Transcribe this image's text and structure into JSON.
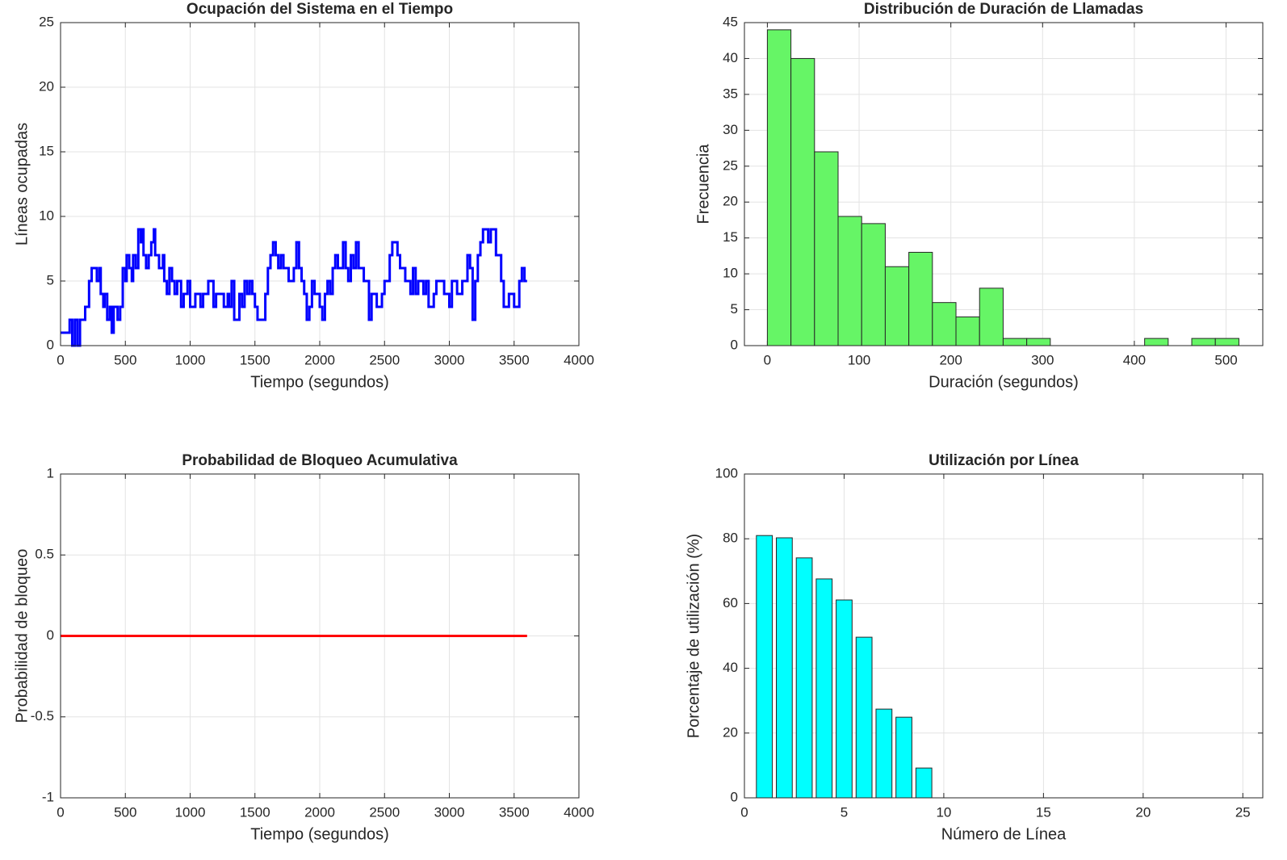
{
  "chart_data": [
    {
      "type": "line",
      "step": true,
      "title": "Ocupación del Sistema en el Tiempo",
      "xlabel": "Tiempo (segundos)",
      "ylabel": "Líneas ocupadas",
      "xlim": [
        0,
        4000
      ],
      "ylim": [
        0,
        25
      ],
      "xticks": [
        0,
        500,
        1000,
        1500,
        2000,
        2500,
        3000,
        3500,
        4000
      ],
      "yticks": [
        0,
        5,
        10,
        15,
        20,
        25
      ],
      "grid": true,
      "x": [
        0,
        70,
        90,
        110,
        130,
        150,
        190,
        220,
        240,
        280,
        300,
        310,
        330,
        340,
        360,
        380,
        395,
        410,
        440,
        460,
        480,
        500,
        510,
        530,
        550,
        560,
        580,
        600,
        620,
        630,
        640,
        660,
        680,
        700,
        720,
        730,
        760,
        790,
        800,
        820,
        840,
        860,
        880,
        900,
        930,
        950,
        980,
        1000,
        1040,
        1080,
        1100,
        1140,
        1180,
        1200,
        1260,
        1290,
        1300,
        1320,
        1340,
        1380,
        1400,
        1420,
        1440,
        1460,
        1480,
        1500,
        1520,
        1580,
        1600,
        1620,
        1640,
        1660,
        1680,
        1700,
        1720,
        1760,
        1800,
        1820,
        1840,
        1860,
        1880,
        1900,
        1920,
        1940,
        1960,
        2000,
        2020,
        2040,
        2060,
        2080,
        2100,
        2120,
        2140,
        2180,
        2200,
        2220,
        2240,
        2260,
        2280,
        2300,
        2340,
        2380,
        2400,
        2440,
        2480,
        2500,
        2540,
        2560,
        2600,
        2620,
        2660,
        2700,
        2720,
        2740,
        2760,
        2800,
        2820,
        2840,
        2880,
        2900,
        2960,
        3000,
        3020,
        3060,
        3100,
        3140,
        3160,
        3180,
        3200,
        3220,
        3240,
        3260,
        3300,
        3320,
        3360,
        3400,
        3420,
        3460,
        3500,
        3540,
        3560,
        3580,
        3600
      ],
      "series": [
        {
          "color": "#0000ff",
          "values": [
            1,
            2,
            0,
            2,
            0,
            2,
            3,
            5,
            6,
            5,
            6,
            4,
            3,
            4,
            2,
            3,
            1,
            3,
            2,
            3,
            6,
            5,
            7,
            6,
            5,
            7,
            6,
            9,
            8,
            9,
            7,
            6,
            7,
            8,
            9,
            7,
            6,
            7,
            5,
            4,
            6,
            5,
            4,
            5,
            3,
            4,
            5,
            3,
            4,
            3,
            4,
            5,
            3,
            4,
            3,
            4,
            3,
            5,
            2,
            4,
            3,
            5,
            4,
            5,
            4,
            3,
            2,
            4,
            6,
            7,
            8,
            7,
            6,
            7,
            6,
            5,
            6,
            8,
            6,
            5,
            4,
            2,
            3,
            5,
            4,
            3,
            2,
            4,
            5,
            4,
            6,
            7,
            6,
            8,
            6,
            5,
            7,
            6,
            8,
            6,
            5,
            2,
            4,
            3,
            4,
            5,
            7,
            8,
            7,
            6,
            5,
            4,
            6,
            4,
            5,
            4,
            5,
            3,
            4,
            5,
            4,
            3,
            5,
            4,
            5,
            7,
            6,
            2,
            5,
            7,
            8,
            9,
            8,
            9,
            7,
            5,
            3,
            4,
            3,
            5,
            6,
            5,
            5
          ]
        }
      ]
    },
    {
      "type": "histogram",
      "title": "Distribución de Duración de Llamadas",
      "xlabel": "Duración (segundos)",
      "ylabel": "Frecuencia",
      "xlim": [
        -25,
        540
      ],
      "ylim": [
        0,
        45
      ],
      "xticks": [
        0,
        100,
        200,
        300,
        400,
        500
      ],
      "yticks": [
        0,
        5,
        10,
        15,
        20,
        25,
        30,
        35,
        40,
        45
      ],
      "grid": true,
      "color": "#66f566",
      "bins": [
        0,
        25.7,
        51.4,
        77.1,
        102.8,
        128.5,
        154.2,
        179.9,
        205.6,
        231.3,
        257,
        282.7,
        308.4,
        334.1,
        359.8,
        385.5,
        411.2,
        436.9,
        462.6,
        488.3,
        514
      ],
      "counts": [
        44,
        40,
        27,
        18,
        17,
        11,
        13,
        6,
        4,
        8,
        1,
        1,
        0,
        0,
        0,
        0,
        1,
        0,
        1,
        1
      ]
    },
    {
      "type": "line",
      "title": "Probabilidad de Bloqueo Acumulativa",
      "xlabel": "Tiempo (segundos)",
      "ylabel": "Probabilidad de bloqueo",
      "xlim": [
        0,
        4000
      ],
      "ylim": [
        -1,
        1
      ],
      "xticks": [
        0,
        500,
        1000,
        1500,
        2000,
        2500,
        3000,
        3500,
        4000
      ],
      "yticks": [
        -1,
        -0.5,
        0,
        0.5,
        1
      ],
      "grid": true,
      "x": [
        0,
        3600
      ],
      "series": [
        {
          "color": "#ff0000",
          "values": [
            0,
            0
          ]
        }
      ]
    },
    {
      "type": "bar",
      "title": "Utilización por Línea",
      "xlabel": "Número de Línea",
      "ylabel": "Porcentaje de utilización (%)",
      "xlim": [
        0,
        26
      ],
      "ylim": [
        0,
        100
      ],
      "xticks": [
        0,
        5,
        10,
        15,
        20,
        25
      ],
      "yticks": [
        0,
        20,
        40,
        60,
        80,
        100
      ],
      "grid": true,
      "color": "#00ffff",
      "x": [
        1,
        2,
        3,
        4,
        5,
        6,
        7,
        8,
        9,
        10,
        11,
        12,
        13,
        14,
        15,
        16,
        17,
        18,
        19,
        20,
        21,
        22,
        23,
        24,
        25
      ],
      "values": [
        81,
        80.3,
        74.1,
        67.6,
        61.1,
        49.6,
        27.4,
        24.9,
        9.2,
        0,
        0,
        0,
        0,
        0,
        0,
        0,
        0,
        0,
        0,
        0,
        0,
        0,
        0,
        0,
        0
      ]
    }
  ]
}
